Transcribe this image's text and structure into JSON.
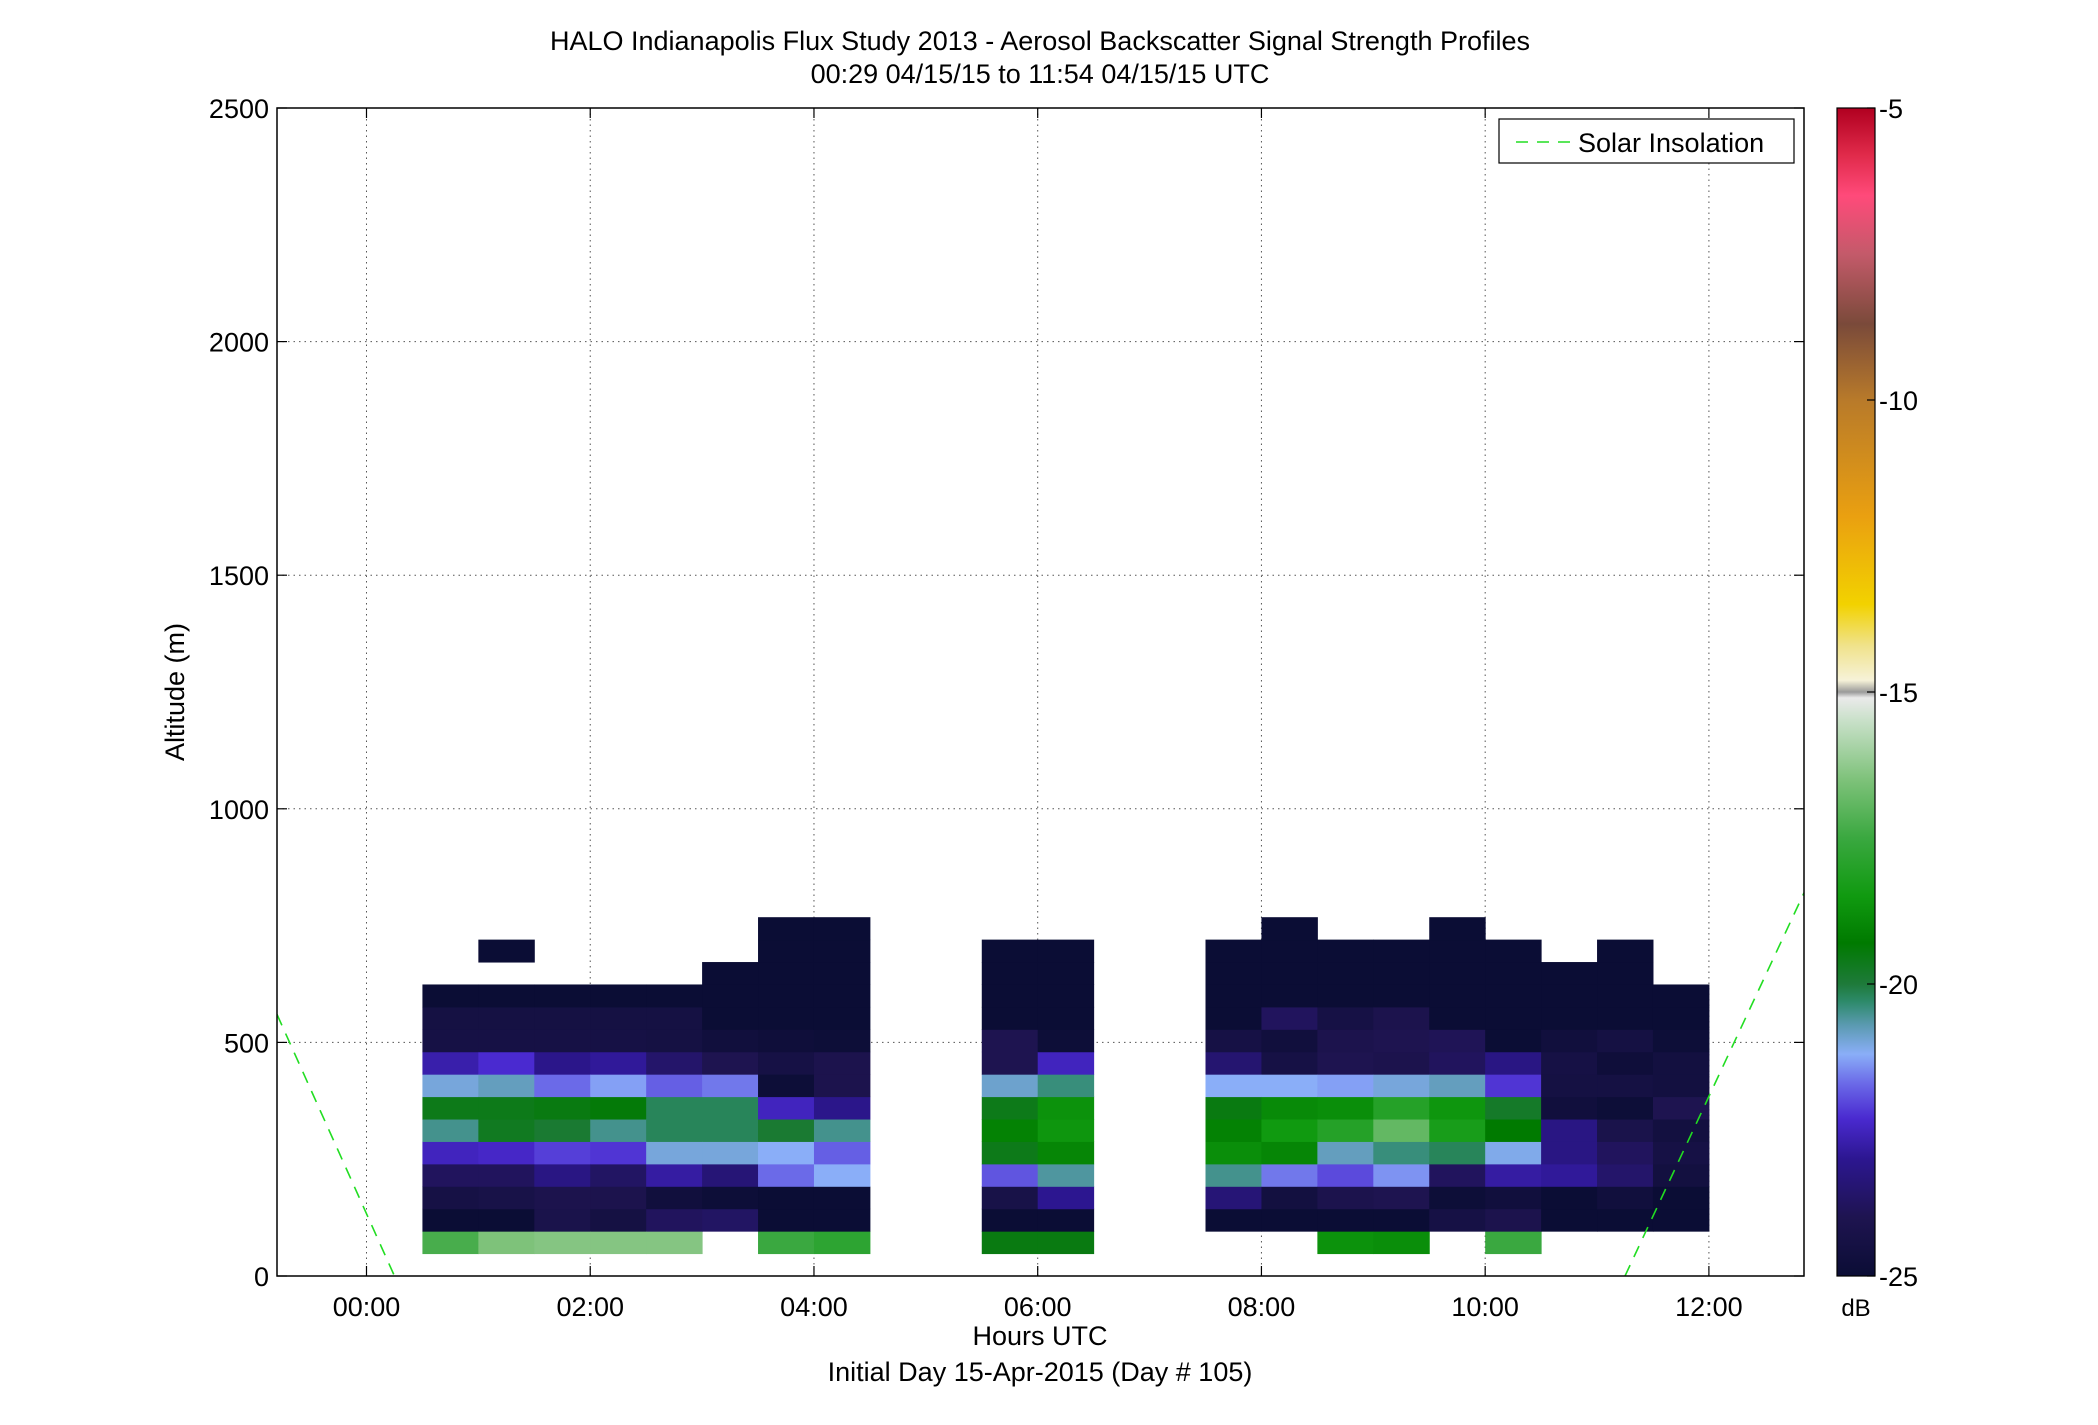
{
  "chart_data": {
    "type": "heatmap",
    "title": "HALO Indianapolis Flux Study 2013 - Aerosol Backscatter Signal Strength Profiles",
    "subtitle": "00:29 04/15/15 to 11:54 04/15/15  UTC",
    "xlabel": "Hours UTC",
    "xlabel2": "Initial Day 15-Apr-2015 (Day # 105)",
    "ylabel": "Altitude (m)",
    "xlim_hours": [
      -0.8,
      12.85
    ],
    "ylim": [
      0,
      2500
    ],
    "x_ticks": [
      {
        "value": 0,
        "label": "00:00"
      },
      {
        "value": 2,
        "label": "02:00"
      },
      {
        "value": 4,
        "label": "04:00"
      },
      {
        "value": 6,
        "label": "06:00"
      },
      {
        "value": 8,
        "label": "08:00"
      },
      {
        "value": 10,
        "label": "10:00"
      },
      {
        "value": 12,
        "label": "12:00"
      }
    ],
    "y_ticks": [
      {
        "value": 0,
        "label": "0"
      },
      {
        "value": 500,
        "label": "500"
      },
      {
        "value": 1000,
        "label": "1000"
      },
      {
        "value": 1500,
        "label": "1500"
      },
      {
        "value": 2000,
        "label": "2000"
      },
      {
        "value": 2500,
        "label": "2500"
      }
    ],
    "grid": true,
    "legend": {
      "placement": "top-right",
      "entries": [
        "Solar Insolation"
      ]
    },
    "colorbar": {
      "unit": "dB",
      "range": [
        -25,
        -5
      ],
      "ticks": [
        {
          "value": -5,
          "label": "-5"
        },
        {
          "value": -10,
          "label": "-10"
        },
        {
          "value": -15,
          "label": "-15"
        },
        {
          "value": -20,
          "label": "-20"
        },
        {
          "value": -25,
          "label": "-25"
        }
      ],
      "stops": [
        {
          "v": -25,
          "c": "#0b0d35"
        },
        {
          "v": -24,
          "c": "#1e1450"
        },
        {
          "v": -23,
          "c": "#2c1690"
        },
        {
          "v": -22.3,
          "c": "#4a2ad0"
        },
        {
          "v": -21.7,
          "c": "#6b6ae8"
        },
        {
          "v": -21.2,
          "c": "#8aaef8"
        },
        {
          "v": -20.7,
          "c": "#5a9ab0"
        },
        {
          "v": -20.3,
          "c": "#2d8a6a"
        },
        {
          "v": -20,
          "c": "#1e7a3a"
        },
        {
          "v": -19.3,
          "c": "#007a00"
        },
        {
          "v": -18.5,
          "c": "#109a10"
        },
        {
          "v": -17.5,
          "c": "#3aa840"
        },
        {
          "v": -16.5,
          "c": "#7ec27a"
        },
        {
          "v": -15.5,
          "c": "#c8e0c8"
        },
        {
          "v": -15.1,
          "c": "#eaeaea"
        },
        {
          "v": -15,
          "c": "#9a9a9a"
        },
        {
          "v": -14.8,
          "c": "#f6f2d8"
        },
        {
          "v": -14.2,
          "c": "#f0e28a"
        },
        {
          "v": -13.5,
          "c": "#f2d200"
        },
        {
          "v": -12,
          "c": "#eaa010"
        },
        {
          "v": -10,
          "c": "#b87a2a"
        },
        {
          "v": -8.7,
          "c": "#7a4a3a"
        },
        {
          "v": -7.5,
          "c": "#c45a6a"
        },
        {
          "v": -6.5,
          "c": "#ff4a7a"
        },
        {
          "v": -5.8,
          "c": "#e02a4a"
        },
        {
          "v": -5,
          "c": "#b00020"
        }
      ]
    },
    "column_width_hours": 0.5,
    "row_height_m": 48,
    "base_altitude_m": 48,
    "columns": [
      {
        "t": 0.5,
        "dB": [
          -17.3,
          -25,
          -24.4,
          -23.8,
          -22.5,
          -20.5,
          -19.6,
          -21.0,
          -22.7,
          -24.4,
          -24.5,
          -25
        ]
      },
      {
        "t": 1.0,
        "dB": [
          -16.5,
          -25,
          -24.3,
          -23.8,
          -22.4,
          -19.7,
          -19.6,
          -20.8,
          -22.3,
          -24.4,
          -24.5,
          -25,
          null,
          -25
        ]
      },
      {
        "t": 1.5,
        "dB": [
          -16.4,
          -24.2,
          -24.1,
          -23.2,
          -22.1,
          -19.9,
          -19.5,
          -21.7,
          -23.1,
          -24.4,
          -24.5,
          -25
        ]
      },
      {
        "t": 2.0,
        "dB": [
          -16.4,
          -24.5,
          -24.1,
          -23.7,
          -22.2,
          -20.5,
          -19.4,
          -21.3,
          -22.9,
          -24.4,
          -24.5,
          -25
        ]
      },
      {
        "t": 2.5,
        "dB": [
          -16.4,
          -23.8,
          -24.7,
          -22.8,
          -21.0,
          -20.2,
          -20.2,
          -21.8,
          -23.6,
          -24.5,
          -24.5,
          -25
        ]
      },
      {
        "t": 3.0,
        "dB": [
          null,
          -23.7,
          -24.9,
          -23.4,
          -21.0,
          -20.2,
          -20.2,
          -21.6,
          -24.0,
          -24.7,
          -25,
          -25,
          -25
        ]
      },
      {
        "t": 3.5,
        "dB": [
          -17.5,
          -25,
          -25,
          -21.7,
          -21.2,
          -19.9,
          -22.5,
          -24.9,
          -24.4,
          -24.8,
          -25,
          -25,
          -25,
          -25,
          -25
        ]
      },
      {
        "t": 4.0,
        "dB": [
          -17.8,
          -25,
          -25,
          -21.2,
          -21.8,
          -20.5,
          -23.1,
          -24.1,
          -24.1,
          -24.9,
          -25,
          -25,
          -25,
          -25,
          -25
        ]
      },
      {
        "t": 5.5,
        "dB": [
          -19.5,
          -25,
          -24.3,
          -21.9,
          -19.6,
          -19.1,
          -19.6,
          -20.9,
          -24.0,
          -24.0,
          -25,
          -25,
          -25,
          -25
        ]
      },
      {
        "t": 6.0,
        "dB": [
          -19.5,
          -25,
          -23.0,
          -20.6,
          -19.0,
          -18.6,
          -18.7,
          -20.4,
          -22.5,
          -24.9,
          -25,
          -25,
          -25,
          -25
        ]
      },
      {
        "t": 7.5,
        "dB": [
          null,
          -25,
          -23.4,
          -20.5,
          -18.8,
          -19.1,
          -19.5,
          -21.2,
          -23.5,
          -24.4,
          -25,
          -25,
          -25,
          -25
        ]
      },
      {
        "t": 8.0,
        "dB": [
          null,
          -25,
          -24.6,
          -21.6,
          -19.0,
          -18.5,
          -18.9,
          -21.2,
          -24.4,
          -24.7,
          -23.8,
          -25,
          -25,
          -25,
          -25
        ]
      },
      {
        "t": 8.5,
        "dB": [
          -18.7,
          -25,
          -24.1,
          -22.0,
          -20.8,
          -18.0,
          -18.8,
          -21.3,
          -24.0,
          -24.1,
          -24.4,
          -25,
          -25,
          -25
        ]
      },
      {
        "t": 9.0,
        "dB": [
          -18.8,
          -25,
          -24.0,
          -21.4,
          -20.4,
          -16.9,
          -18.0,
          -21.0,
          -24.1,
          -24.0,
          -24.1,
          -25,
          -25,
          -25
        ]
      },
      {
        "t": 9.5,
        "dB": [
          null,
          -24.4,
          -24.9,
          -23.8,
          -20.2,
          -18.3,
          -18.6,
          -20.8,
          -23.8,
          -23.9,
          -25,
          -25,
          -25,
          -25,
          -25
        ]
      },
      {
        "t": 10.0,
        "dB": [
          -17.5,
          -24.1,
          -24.7,
          -22.8,
          -21.1,
          -19.3,
          -19.8,
          -22.2,
          -23.2,
          -25,
          -25,
          -25,
          -25,
          -25
        ]
      },
      {
        "t": 10.5,
        "dB": [
          null,
          -25,
          -25,
          -22.9,
          -23.2,
          -23.2,
          -24.7,
          -24.5,
          -24.4,
          -24.7,
          -25,
          -25,
          -25
        ]
      },
      {
        "t": 11.0,
        "dB": [
          null,
          -25,
          -24.7,
          -23.6,
          -23.8,
          -24.2,
          -24.9,
          -24.5,
          -24.8,
          -24.5,
          -25,
          -25,
          -25,
          -25
        ]
      },
      {
        "t": 11.5,
        "dB": [
          null,
          -25,
          -25,
          -24.6,
          -24.4,
          -24.6,
          -24.0,
          -24.6,
          -24.6,
          -24.9,
          -25,
          -25
        ]
      }
    ],
    "solar_insolation": [
      {
        "x": -0.8,
        "y": 560
      },
      {
        "x": 0.25,
        "y": 0
      },
      {
        "x": 11.25,
        "y": 0
      },
      {
        "x": 12.85,
        "y": 820
      }
    ]
  }
}
